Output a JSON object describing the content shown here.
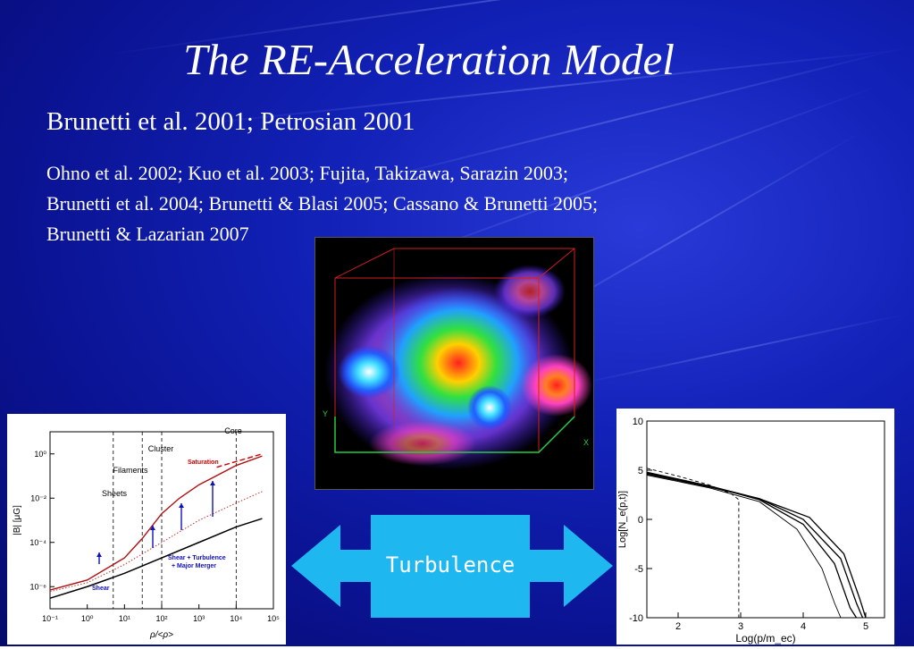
{
  "slide": {
    "title": "The RE-Acceleration Model",
    "subtitle": "Brunetti et al. 2001; Petrosian 2001",
    "refs": [
      "Ohno et al. 2002; Kuo et al. 2003; Fujita, Takizawa, Sarazin 2003;",
      "Brunetti et al. 2004; Brunetti & Blasi 2005; Cassano & Brunetti 2005;",
      "Brunetti & Lazarian 2007"
    ],
    "turbulence_label": "Turbulence"
  },
  "colors": {
    "background": "#0a1290",
    "arrow": "#1fb7ef",
    "saturation": "#cc0000"
  },
  "chart_data": [
    {
      "type": "line",
      "xlabel": "ρ/<ρ>",
      "ylabel": "|B| [μG]",
      "xscale": "log",
      "yscale": "log",
      "xlim": [
        0.1,
        100000
      ],
      "ylim": [
        1e-07,
        10
      ],
      "x_tick_labels": [
        "10⁻¹",
        "10⁰",
        "10¹",
        "10²",
        "10³",
        "10⁴",
        "10⁵"
      ],
      "y_tick_labels": [
        "10⁰",
        "10⁻²",
        "10⁻⁴",
        "10⁻⁶"
      ],
      "region_labels": [
        "Sheets",
        "Filaments",
        "Cluster",
        "Core"
      ],
      "annotations": [
        "Saturation",
        "Shear + Turbulence",
        "+ Major Merger",
        "Shear"
      ],
      "series": [
        {
          "x": [
            0.1,
            1,
            10,
            100,
            1000,
            10000,
            50000
          ],
          "y": [
            3e-07,
            1e-06,
            4e-06,
            2e-05,
            0.0001,
            0.0005,
            0.0012
          ]
        },
        {
          "x": [
            0.1,
            1,
            10,
            100,
            1000,
            10000,
            50000
          ],
          "y": [
            6e-07,
            1.5e-06,
            1e-05,
            0.0001,
            0.001,
            0.006,
            0.02
          ]
        },
        {
          "x": [
            0.1,
            1,
            10,
            30,
            100,
            300,
            1000,
            10000,
            50000
          ],
          "y": [
            7e-07,
            2e-06,
            2e-05,
            0.00015,
            0.002,
            0.01,
            0.04,
            0.3,
            0.8
          ]
        },
        {
          "x": [
            3000,
            50000
          ],
          "y": [
            0.25,
            1.0
          ]
        }
      ]
    },
    {
      "type": "line",
      "xlabel": "Log(p/m_ec)",
      "ylabel": "Log[N_e(p,t)]",
      "xlim": [
        1.5,
        5.3
      ],
      "ylim": [
        -10,
        10
      ],
      "x_tick_labels": [
        "2",
        "3",
        "4",
        "5"
      ],
      "y_tick_labels": [
        "10",
        "5",
        "0",
        "-5",
        "-10"
      ],
      "series": [
        {
          "x": [
            1.5,
            2.5,
            3.3,
            4.0,
            4.5,
            4.75,
            4.85
          ],
          "y": [
            4.8,
            3.4,
            2.0,
            -0.5,
            -4.5,
            -9.0,
            -10
          ]
        },
        {
          "x": [
            1.5,
            2.5,
            3.3,
            4.0,
            4.6,
            4.85,
            4.95
          ],
          "y": [
            4.7,
            3.4,
            2.1,
            0.0,
            -4.0,
            -8.5,
            -10
          ]
        },
        {
          "x": [
            1.5,
            2.5,
            3.3,
            4.1,
            4.65,
            4.9,
            5.0
          ],
          "y": [
            4.6,
            3.3,
            2.1,
            0.2,
            -3.5,
            -8.0,
            -10
          ]
        },
        {
          "x": [
            1.5,
            2.5,
            3.3,
            3.9,
            4.3,
            4.5,
            4.6
          ],
          "y": [
            4.5,
            3.2,
            1.8,
            -1.0,
            -5.0,
            -8.5,
            -10
          ]
        },
        {
          "x": [
            1.5,
            2.0,
            2.5,
            2.85,
            2.97,
            2.97
          ],
          "y": [
            5.2,
            4.4,
            3.5,
            2.6,
            2.0,
            -10
          ]
        }
      ]
    }
  ]
}
